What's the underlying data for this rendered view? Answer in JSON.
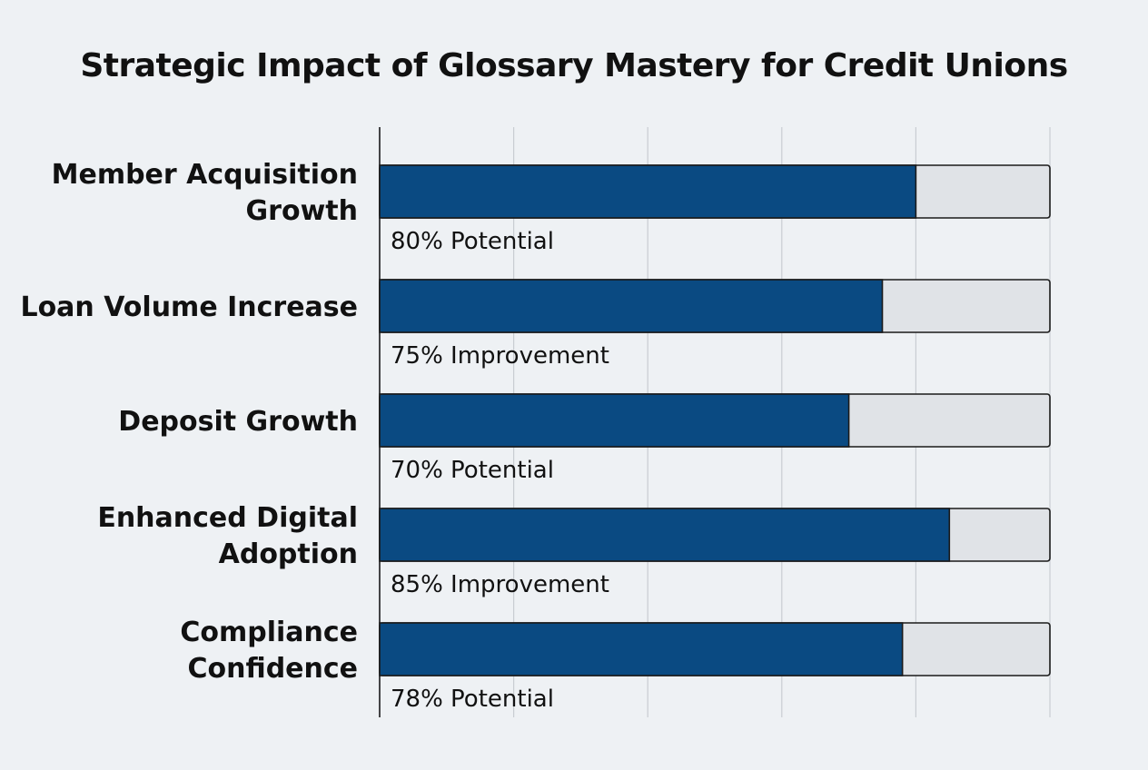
{
  "chart_data": {
    "type": "bar",
    "orientation": "horizontal",
    "title": "Strategic Impact of Glossary Mastery for Credit Unions",
    "categories": [
      [
        "Member Acquisition",
        "Growth"
      ],
      [
        "Loan Volume Increase"
      ],
      [
        "Deposit Growth"
      ],
      [
        "Enhanced Digital",
        "Adoption"
      ],
      [
        "Compliance",
        "Confidence"
      ]
    ],
    "values": [
      80,
      75,
      70,
      85,
      78
    ],
    "data_labels": [
      "80% Potential",
      "75% Improvement",
      "70% Potential",
      "85% Improvement",
      "78% Potential"
    ],
    "xlim": [
      0,
      100
    ],
    "xticks": [
      0,
      20,
      40,
      60,
      80,
      100
    ],
    "grid": true,
    "show_track": true,
    "xlabel": "",
    "ylabel": "",
    "colors": {
      "bar": "#0a4a82",
      "track": "#e0e3e7",
      "outline": "#1a1a1a",
      "grid": "#c9cdd2",
      "axis": "#1a1a1a",
      "label": "#111111"
    }
  }
}
